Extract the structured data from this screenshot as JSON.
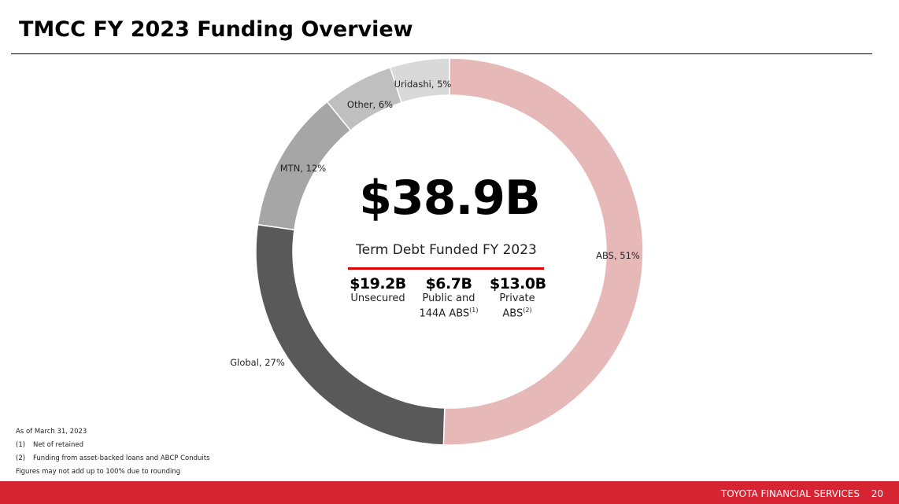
{
  "title": "TMCC FY 2023 Funding Overview",
  "chart_data": {
    "type": "pie",
    "donut": true,
    "categories": [
      "ABS",
      "Global",
      "MTN",
      "Other",
      "Uridashi"
    ],
    "values": [
      51,
      27,
      12,
      6,
      5
    ],
    "unit": "%",
    "data_labels": [
      "ABS, 51%",
      "Global, 27%",
      "MTN, 12%",
      "Other, 6%",
      "Uridashi, 5%"
    ],
    "colors": [
      "#e6b8b7",
      "#595959",
      "#a6a6a6",
      "#bfbfbf",
      "#d9d9d9"
    ],
    "start": "top",
    "direction": "clockwise"
  },
  "center": {
    "total": "$38.9B",
    "subtitle": "Term Debt Funded FY 2023",
    "accent_color": "#d00000",
    "breakdown": [
      {
        "value": "$19.2B",
        "label": "Unsecured",
        "sup": ""
      },
      {
        "value": "$6.7B",
        "label": "Public and 144A ABS",
        "sup": "(1)"
      },
      {
        "value": "$13.0B",
        "label": "Private ABS",
        "sup": "(2)"
      }
    ]
  },
  "notes": {
    "as_of": "As of March 31, 2023",
    "items": [
      {
        "num": "(1)",
        "text": "Net of retained"
      },
      {
        "num": "(2)",
        "text": "Funding from asset-backed loans and ABCP Conduits"
      }
    ],
    "rounding": "Figures may not add up to 100% due to rounding"
  },
  "footer": {
    "brand": "TOYOTA FINANCIAL SERVICES",
    "page": "20",
    "color": "#d62433"
  }
}
